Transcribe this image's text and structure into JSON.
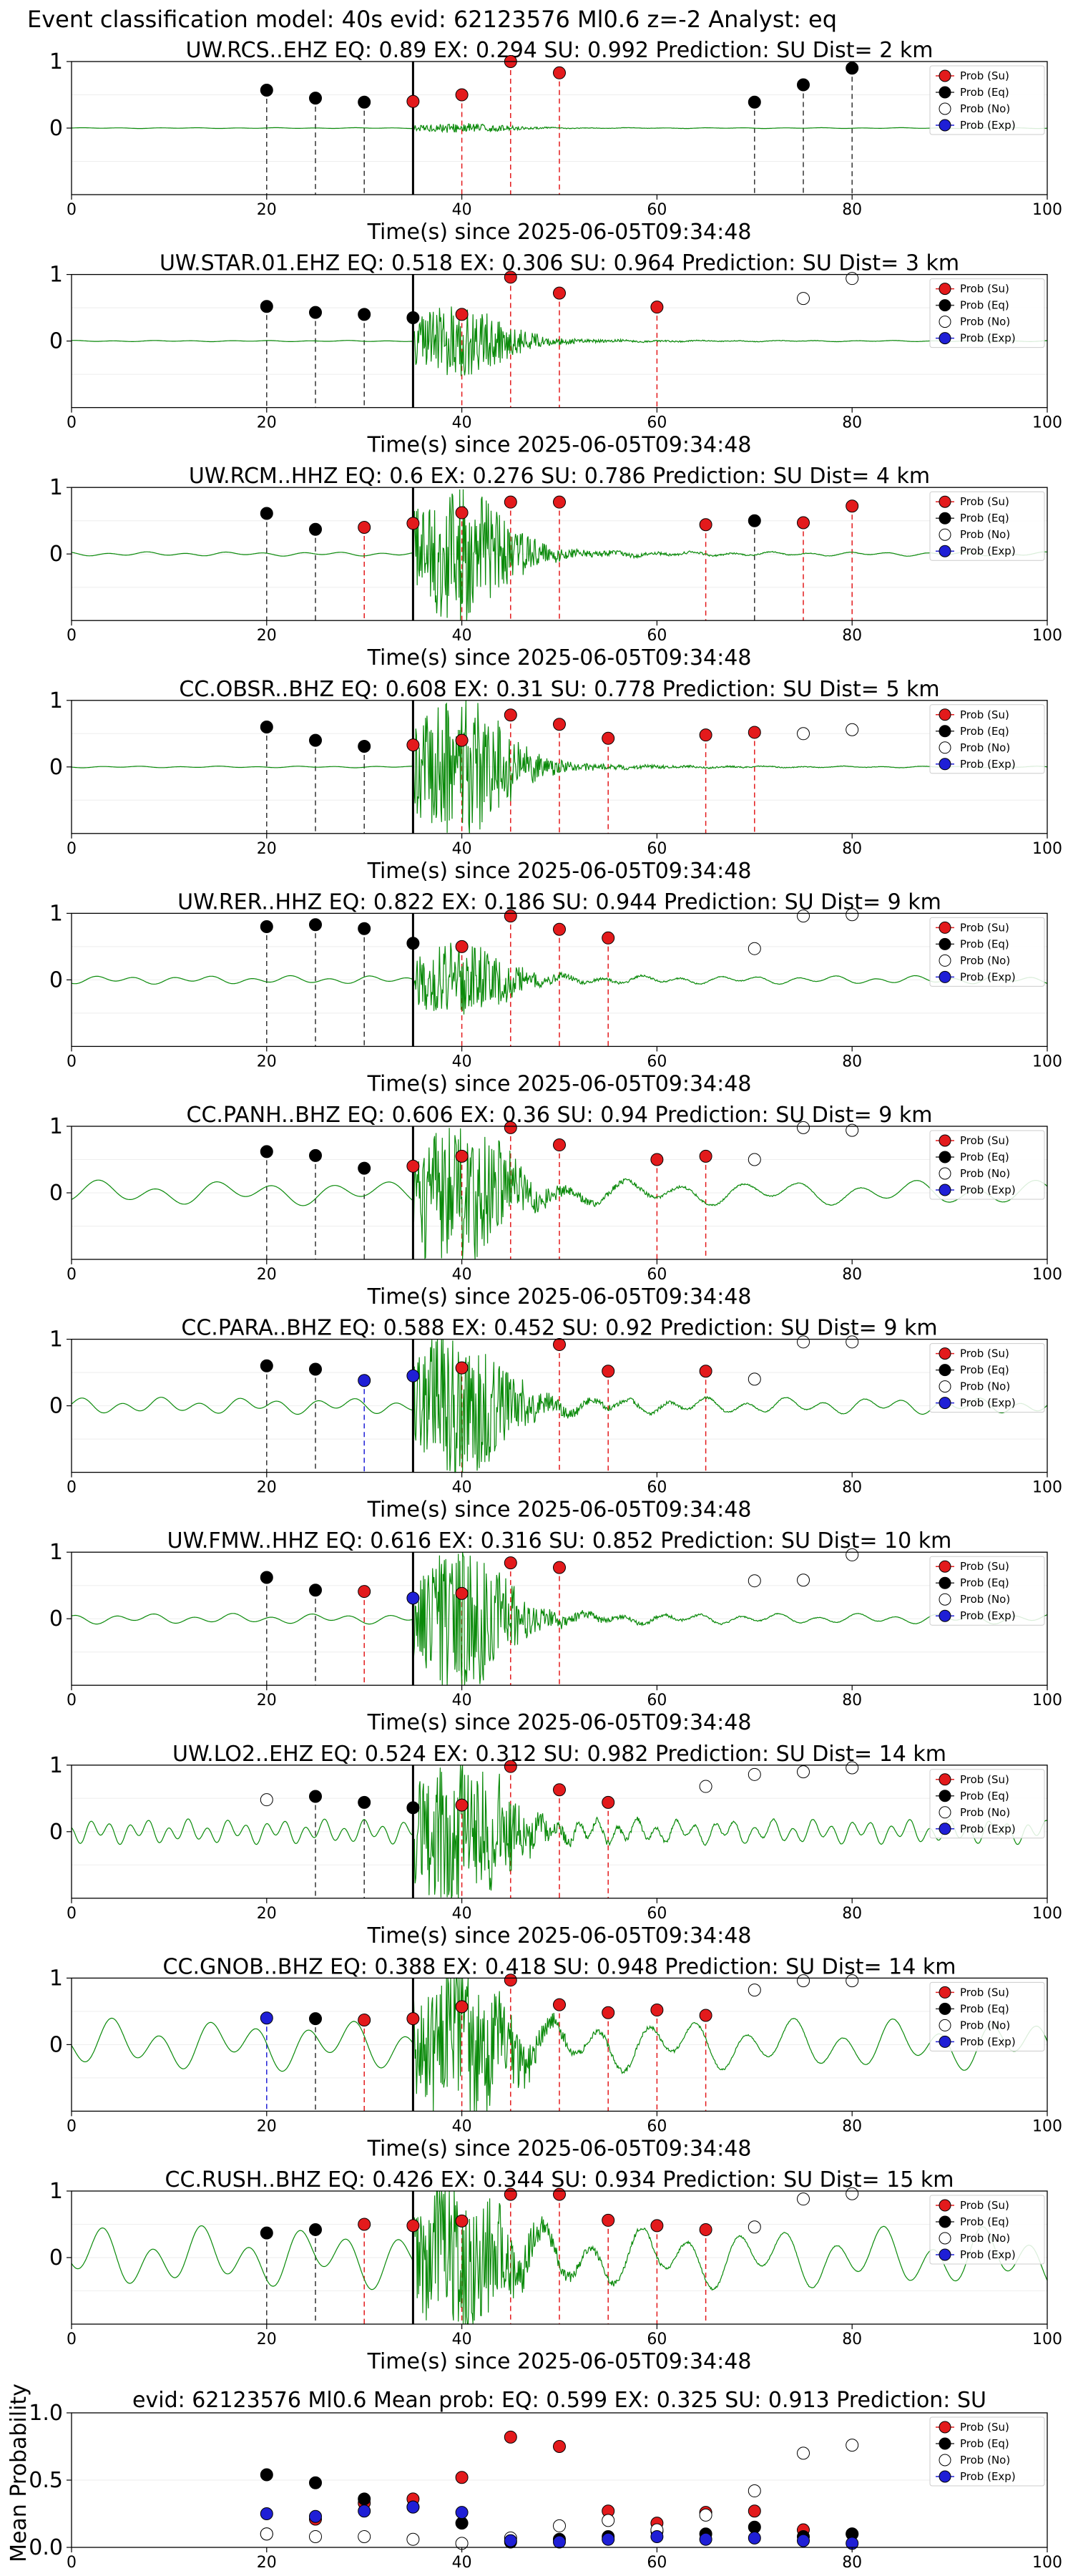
{
  "figure": {
    "suptitle": "Event classification model: 40s evid: 62123576 Ml0.6 z=-2 Analyst: eq"
  },
  "legend_labels": [
    "Prob (Su)",
    "Prob (Eq)",
    "Prob (No)",
    "Prob (Exp)"
  ],
  "colors": {
    "su": "#e31a1c",
    "eq": "#000000",
    "no": "#ffffff",
    "exp": "#1f1fd6",
    "waveform": "#0a8a0a",
    "pick_line": "#000000"
  },
  "chart_data": [
    {
      "type": "scatter",
      "title": "UW.RCS..EHZ   EQ: 0.89  EX: 0.294  SU: 0.992   Prediction: SU    Dist= 2 km",
      "xlabel": "Time(s) since 2025-06-05T09:34:48",
      "xlim": [
        0,
        100
      ],
      "ylim": [
        -1,
        1
      ],
      "xticks": [
        "0",
        "20",
        "40",
        "60",
        "80",
        "100"
      ],
      "yticks": [
        "1",
        "0"
      ],
      "pick_time": 35,
      "amplitude": 0.06,
      "noise": 0.004,
      "wave_period": 4,
      "markers": [
        {
          "x": 20,
          "y": 0.57,
          "class": "eq"
        },
        {
          "x": 25,
          "y": 0.45,
          "class": "eq"
        },
        {
          "x": 30,
          "y": 0.39,
          "class": "eq"
        },
        {
          "x": 35,
          "y": 0.4,
          "class": "su"
        },
        {
          "x": 40,
          "y": 0.5,
          "class": "su"
        },
        {
          "x": 45,
          "y": 1.0,
          "class": "su"
        },
        {
          "x": 50,
          "y": 0.83,
          "class": "su"
        },
        {
          "x": 70,
          "y": 0.39,
          "class": "eq"
        },
        {
          "x": 75,
          "y": 0.65,
          "class": "eq"
        },
        {
          "x": 80,
          "y": 0.9,
          "class": "eq"
        }
      ]
    },
    {
      "type": "scatter",
      "title": "UW.STAR.01.EHZ   EQ: 0.518  EX: 0.306  SU: 0.964   Prediction: SU    Dist= 3 km",
      "xlabel": "Time(s) since 2025-06-05T09:34:48",
      "xlim": [
        0,
        100
      ],
      "ylim": [
        -1,
        1
      ],
      "xticks": [
        "0",
        "20",
        "40",
        "60",
        "80",
        "100"
      ],
      "yticks": [
        "1",
        "0"
      ],
      "pick_time": 35,
      "amplitude": 0.45,
      "noise": 0.006,
      "wave_period": 4,
      "markers": [
        {
          "x": 20,
          "y": 0.52,
          "class": "eq"
        },
        {
          "x": 25,
          "y": 0.43,
          "class": "eq"
        },
        {
          "x": 30,
          "y": 0.4,
          "class": "eq"
        },
        {
          "x": 35,
          "y": 0.35,
          "class": "eq"
        },
        {
          "x": 40,
          "y": 0.4,
          "class": "su"
        },
        {
          "x": 45,
          "y": 0.96,
          "class": "su"
        },
        {
          "x": 50,
          "y": 0.72,
          "class": "su"
        },
        {
          "x": 60,
          "y": 0.51,
          "class": "su"
        },
        {
          "x": 75,
          "y": 0.64,
          "class": "no"
        },
        {
          "x": 80,
          "y": 0.94,
          "class": "no"
        }
      ]
    },
    {
      "type": "scatter",
      "title": "UW.RCM..HHZ   EQ: 0.6  EX: 0.276  SU: 0.786   Prediction: SU    Dist= 4 km",
      "xlabel": "Time(s) since 2025-06-05T09:34:48",
      "xlim": [
        0,
        100
      ],
      "ylim": [
        -1,
        1
      ],
      "xticks": [
        "0",
        "20",
        "40",
        "60",
        "80",
        "100"
      ],
      "yticks": [
        "1",
        "0"
      ],
      "pick_time": 35,
      "amplitude": 0.85,
      "noise": 0.02,
      "wave_period": 4,
      "markers": [
        {
          "x": 20,
          "y": 0.61,
          "class": "eq"
        },
        {
          "x": 25,
          "y": 0.37,
          "class": "eq"
        },
        {
          "x": 30,
          "y": 0.4,
          "class": "su"
        },
        {
          "x": 35,
          "y": 0.46,
          "class": "su"
        },
        {
          "x": 40,
          "y": 0.62,
          "class": "su"
        },
        {
          "x": 45,
          "y": 0.78,
          "class": "su"
        },
        {
          "x": 50,
          "y": 0.78,
          "class": "su"
        },
        {
          "x": 65,
          "y": 0.44,
          "class": "su"
        },
        {
          "x": 70,
          "y": 0.5,
          "class": "eq"
        },
        {
          "x": 75,
          "y": 0.47,
          "class": "su"
        },
        {
          "x": 80,
          "y": 0.72,
          "class": "su"
        }
      ]
    },
    {
      "type": "scatter",
      "title": "CC.OBSR..BHZ   EQ: 0.608  EX: 0.31  SU: 0.778   Prediction: SU    Dist= 5 km",
      "xlabel": "Time(s) since 2025-06-05T09:34:48",
      "xlim": [
        0,
        100
      ],
      "ylim": [
        -1,
        1
      ],
      "xticks": [
        "0",
        "20",
        "40",
        "60",
        "80",
        "100"
      ],
      "yticks": [
        "1",
        "0"
      ],
      "pick_time": 35,
      "amplitude": 0.9,
      "noise": 0.008,
      "wave_period": 4,
      "markers": [
        {
          "x": 20,
          "y": 0.6,
          "class": "eq"
        },
        {
          "x": 25,
          "y": 0.4,
          "class": "eq"
        },
        {
          "x": 30,
          "y": 0.31,
          "class": "eq"
        },
        {
          "x": 35,
          "y": 0.33,
          "class": "su"
        },
        {
          "x": 40,
          "y": 0.4,
          "class": "su"
        },
        {
          "x": 45,
          "y": 0.78,
          "class": "su"
        },
        {
          "x": 50,
          "y": 0.64,
          "class": "su"
        },
        {
          "x": 55,
          "y": 0.43,
          "class": "su"
        },
        {
          "x": 65,
          "y": 0.48,
          "class": "su"
        },
        {
          "x": 70,
          "y": 0.52,
          "class": "su"
        },
        {
          "x": 75,
          "y": 0.5,
          "class": "no"
        },
        {
          "x": 80,
          "y": 0.56,
          "class": "no"
        }
      ]
    },
    {
      "type": "scatter",
      "title": "UW.RER..HHZ   EQ: 0.822  EX: 0.186  SU: 0.944   Prediction: SU    Dist= 9 km",
      "xlabel": "Time(s) since 2025-06-05T09:34:48",
      "xlim": [
        0,
        100
      ],
      "ylim": [
        -1,
        1
      ],
      "xticks": [
        "0",
        "20",
        "40",
        "60",
        "80",
        "100"
      ],
      "yticks": [
        "1",
        "0"
      ],
      "pick_time": 35,
      "amplitude": 0.45,
      "noise": 0.04,
      "wave_period": 4,
      "markers": [
        {
          "x": 20,
          "y": 0.8,
          "class": "eq"
        },
        {
          "x": 25,
          "y": 0.83,
          "class": "eq"
        },
        {
          "x": 30,
          "y": 0.77,
          "class": "eq"
        },
        {
          "x": 35,
          "y": 0.55,
          "class": "eq"
        },
        {
          "x": 40,
          "y": 0.5,
          "class": "su"
        },
        {
          "x": 45,
          "y": 0.96,
          "class": "su"
        },
        {
          "x": 50,
          "y": 0.76,
          "class": "su"
        },
        {
          "x": 55,
          "y": 0.63,
          "class": "su"
        },
        {
          "x": 70,
          "y": 0.47,
          "class": "no"
        },
        {
          "x": 75,
          "y": 0.96,
          "class": "no"
        },
        {
          "x": 80,
          "y": 0.98,
          "class": "no"
        }
      ]
    },
    {
      "type": "scatter",
      "title": "CC.PANH..BHZ   EQ: 0.606  EX: 0.36  SU: 0.94   Prediction: SU    Dist= 9 km",
      "xlabel": "Time(s) since 2025-06-05T09:34:48",
      "xlim": [
        0,
        100
      ],
      "ylim": [
        -1,
        1
      ],
      "xticks": [
        "0",
        "20",
        "40",
        "60",
        "80",
        "100"
      ],
      "yticks": [
        "1",
        "0"
      ],
      "pick_time": 35,
      "amplitude": 0.9,
      "noise": 0.12,
      "wave_period": 6,
      "markers": [
        {
          "x": 20,
          "y": 0.62,
          "class": "eq"
        },
        {
          "x": 25,
          "y": 0.56,
          "class": "eq"
        },
        {
          "x": 30,
          "y": 0.37,
          "class": "eq"
        },
        {
          "x": 35,
          "y": 0.4,
          "class": "su"
        },
        {
          "x": 40,
          "y": 0.55,
          "class": "su"
        },
        {
          "x": 45,
          "y": 0.98,
          "class": "su"
        },
        {
          "x": 50,
          "y": 0.72,
          "class": "su"
        },
        {
          "x": 60,
          "y": 0.5,
          "class": "su"
        },
        {
          "x": 65,
          "y": 0.55,
          "class": "su"
        },
        {
          "x": 70,
          "y": 0.5,
          "class": "no"
        },
        {
          "x": 75,
          "y": 0.98,
          "class": "no"
        },
        {
          "x": 80,
          "y": 0.94,
          "class": "no"
        }
      ]
    },
    {
      "type": "scatter",
      "title": "CC.PARA..BHZ   EQ: 0.588  EX: 0.452  SU: 0.92   Prediction: SU    Dist= 9 km",
      "xlabel": "Time(s) since 2025-06-05T09:34:48",
      "xlim": [
        0,
        100
      ],
      "ylim": [
        -1,
        1
      ],
      "xticks": [
        "0",
        "20",
        "40",
        "60",
        "80",
        "100"
      ],
      "yticks": [
        "1",
        "0"
      ],
      "pick_time": 35,
      "amplitude": 0.9,
      "noise": 0.08,
      "wave_period": 4,
      "markers": [
        {
          "x": 20,
          "y": 0.6,
          "class": "eq"
        },
        {
          "x": 25,
          "y": 0.55,
          "class": "eq"
        },
        {
          "x": 30,
          "y": 0.38,
          "class": "exp"
        },
        {
          "x": 35,
          "y": 0.45,
          "class": "exp"
        },
        {
          "x": 40,
          "y": 0.57,
          "class": "su"
        },
        {
          "x": 50,
          "y": 0.92,
          "class": "su"
        },
        {
          "x": 55,
          "y": 0.52,
          "class": "su"
        },
        {
          "x": 65,
          "y": 0.52,
          "class": "su"
        },
        {
          "x": 70,
          "y": 0.4,
          "class": "no"
        },
        {
          "x": 75,
          "y": 0.96,
          "class": "no"
        },
        {
          "x": 80,
          "y": 0.96,
          "class": "no"
        }
      ]
    },
    {
      "type": "scatter",
      "title": "UW.FMW..HHZ   EQ: 0.616  EX: 0.316  SU: 0.852   Prediction: SU    Dist= 10 km",
      "xlabel": "Time(s) since 2025-06-05T09:34:48",
      "xlim": [
        0,
        100
      ],
      "ylim": [
        -1,
        1
      ],
      "xticks": [
        "0",
        "20",
        "40",
        "60",
        "80",
        "100"
      ],
      "yticks": [
        "1",
        "0"
      ],
      "pick_time": 35,
      "amplitude": 0.9,
      "noise": 0.05,
      "wave_period": 4,
      "markers": [
        {
          "x": 20,
          "y": 0.62,
          "class": "eq"
        },
        {
          "x": 25,
          "y": 0.43,
          "class": "eq"
        },
        {
          "x": 30,
          "y": 0.41,
          "class": "su"
        },
        {
          "x": 35,
          "y": 0.31,
          "class": "exp"
        },
        {
          "x": 40,
          "y": 0.38,
          "class": "su"
        },
        {
          "x": 45,
          "y": 0.84,
          "class": "su"
        },
        {
          "x": 50,
          "y": 0.77,
          "class": "su"
        },
        {
          "x": 70,
          "y": 0.57,
          "class": "no"
        },
        {
          "x": 75,
          "y": 0.58,
          "class": "no"
        },
        {
          "x": 80,
          "y": 0.96,
          "class": "no"
        }
      ]
    },
    {
      "type": "scatter",
      "title": "UW.LO2..EHZ   EQ: 0.524  EX: 0.312  SU: 0.982   Prediction: SU    Dist= 14 km",
      "xlabel": "Time(s) since 2025-06-05T09:34:48",
      "xlim": [
        0,
        100
      ],
      "ylim": [
        -1,
        1
      ],
      "xticks": [
        "0",
        "20",
        "40",
        "60",
        "80",
        "100"
      ],
      "yticks": [
        "1",
        "0"
      ],
      "pick_time": 35,
      "amplitude": 0.95,
      "noise": 0.12,
      "wave_period": 2,
      "markers": [
        {
          "x": 20,
          "y": 0.48,
          "class": "no"
        },
        {
          "x": 25,
          "y": 0.53,
          "class": "eq"
        },
        {
          "x": 30,
          "y": 0.44,
          "class": "eq"
        },
        {
          "x": 35,
          "y": 0.36,
          "class": "eq"
        },
        {
          "x": 40,
          "y": 0.4,
          "class": "su"
        },
        {
          "x": 45,
          "y": 0.98,
          "class": "su"
        },
        {
          "x": 50,
          "y": 0.63,
          "class": "su"
        },
        {
          "x": 55,
          "y": 0.44,
          "class": "su"
        },
        {
          "x": 65,
          "y": 0.68,
          "class": "no"
        },
        {
          "x": 70,
          "y": 0.86,
          "class": "no"
        },
        {
          "x": 75,
          "y": 0.9,
          "class": "no"
        },
        {
          "x": 80,
          "y": 0.96,
          "class": "no"
        }
      ]
    },
    {
      "type": "scatter",
      "title": "CC.GNOB..BHZ   EQ: 0.388  EX: 0.418  SU: 0.948   Prediction: SU    Dist= 14 km",
      "xlabel": "Time(s) since 2025-06-05T09:34:48",
      "xlim": [
        0,
        100
      ],
      "ylim": [
        -1,
        1
      ],
      "xticks": [
        "0",
        "20",
        "40",
        "60",
        "80",
        "100"
      ],
      "yticks": [
        "1",
        "0"
      ],
      "pick_time": 35,
      "amplitude": 0.95,
      "noise": 0.25,
      "wave_period": 5,
      "markers": [
        {
          "x": 20,
          "y": 0.4,
          "class": "exp"
        },
        {
          "x": 25,
          "y": 0.39,
          "class": "eq"
        },
        {
          "x": 30,
          "y": 0.37,
          "class": "su"
        },
        {
          "x": 35,
          "y": 0.39,
          "class": "su"
        },
        {
          "x": 40,
          "y": 0.57,
          "class": "su"
        },
        {
          "x": 45,
          "y": 0.97,
          "class": "su"
        },
        {
          "x": 50,
          "y": 0.6,
          "class": "su"
        },
        {
          "x": 55,
          "y": 0.48,
          "class": "su"
        },
        {
          "x": 60,
          "y": 0.52,
          "class": "su"
        },
        {
          "x": 65,
          "y": 0.44,
          "class": "su"
        },
        {
          "x": 70,
          "y": 0.82,
          "class": "no"
        },
        {
          "x": 75,
          "y": 0.96,
          "class": "no"
        },
        {
          "x": 80,
          "y": 0.96,
          "class": "no"
        }
      ]
    },
    {
      "type": "scatter",
      "title": "CC.RUSH..BHZ   EQ: 0.426  EX: 0.344  SU: 0.934   Prediction: SU    Dist= 15 km",
      "xlabel": "Time(s) since 2025-06-05T09:34:48",
      "xlim": [
        0,
        100
      ],
      "ylim": [
        -1,
        1
      ],
      "xticks": [
        "0",
        "20",
        "40",
        "60",
        "80",
        "100"
      ],
      "yticks": [
        "1",
        "0"
      ],
      "pick_time": 35,
      "amplitude": 0.95,
      "noise": 0.3,
      "wave_period": 5,
      "markers": [
        {
          "x": 20,
          "y": 0.37,
          "class": "eq"
        },
        {
          "x": 25,
          "y": 0.42,
          "class": "eq"
        },
        {
          "x": 30,
          "y": 0.5,
          "class": "su"
        },
        {
          "x": 35,
          "y": 0.48,
          "class": "su"
        },
        {
          "x": 40,
          "y": 0.55,
          "class": "su"
        },
        {
          "x": 45,
          "y": 0.95,
          "class": "su"
        },
        {
          "x": 50,
          "y": 0.95,
          "class": "su"
        },
        {
          "x": 55,
          "y": 0.56,
          "class": "su"
        },
        {
          "x": 60,
          "y": 0.48,
          "class": "su"
        },
        {
          "x": 65,
          "y": 0.42,
          "class": "su"
        },
        {
          "x": 70,
          "y": 0.46,
          "class": "no"
        },
        {
          "x": 75,
          "y": 0.88,
          "class": "no"
        },
        {
          "x": 80,
          "y": 0.96,
          "class": "no"
        }
      ]
    },
    {
      "type": "scatter",
      "title": "evid: 62123576  Ml0.6   Mean prob:   EQ: 0.599  EX: 0.325  SU: 0.913   Prediction: SU",
      "xlabel": "",
      "ylabel": "Mean Probability",
      "xlim": [
        0,
        100
      ],
      "ylim": [
        0,
        1
      ],
      "xticks": [
        "0",
        "20",
        "40",
        "60",
        "80",
        "100"
      ],
      "yticks": [
        "1.0",
        "0.5",
        "0.0"
      ],
      "categories": [
        20,
        25,
        30,
        35,
        40,
        45,
        50,
        55,
        60,
        65,
        70,
        75,
        80
      ],
      "series": [
        {
          "name": "Prob (Su)",
          "class": "su",
          "values": [
            0.1,
            0.21,
            0.33,
            0.36,
            0.52,
            0.82,
            0.75,
            0.27,
            0.18,
            0.26,
            0.27,
            0.13,
            0.1
          ]
        },
        {
          "name": "Prob (Eq)",
          "class": "eq",
          "values": [
            0.54,
            0.48,
            0.36,
            0.3,
            0.18,
            0.04,
            0.06,
            0.08,
            0.12,
            0.1,
            0.15,
            0.08,
            0.1
          ]
        },
        {
          "name": "Prob (No)",
          "class": "no",
          "values": [
            0.1,
            0.08,
            0.08,
            0.06,
            0.03,
            0.07,
            0.16,
            0.2,
            0.13,
            0.24,
            0.42,
            0.7,
            0.76
          ]
        },
        {
          "name": "Prob (Exp)",
          "class": "exp",
          "values": [
            0.25,
            0.23,
            0.27,
            0.3,
            0.26,
            0.05,
            0.04,
            0.06,
            0.08,
            0.06,
            0.07,
            0.05,
            0.03
          ]
        }
      ]
    }
  ]
}
